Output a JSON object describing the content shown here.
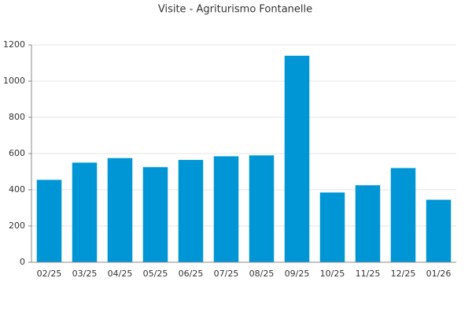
{
  "chart_data": {
    "type": "bar",
    "title": "Visite - Agriturismo Fontanelle",
    "categories": [
      "02/25",
      "03/25",
      "04/25",
      "05/25",
      "06/25",
      "07/25",
      "08/25",
      "09/25",
      "10/25",
      "11/25",
      "12/25",
      "01/26"
    ],
    "values": [
      455,
      550,
      575,
      525,
      565,
      585,
      590,
      1140,
      385,
      425,
      520,
      345
    ],
    "color": "#0096d6",
    "ylim": [
      0,
      1200
    ],
    "yticks": [
      0,
      200,
      400,
      600,
      800,
      1000,
      1200
    ],
    "grid": true
  }
}
